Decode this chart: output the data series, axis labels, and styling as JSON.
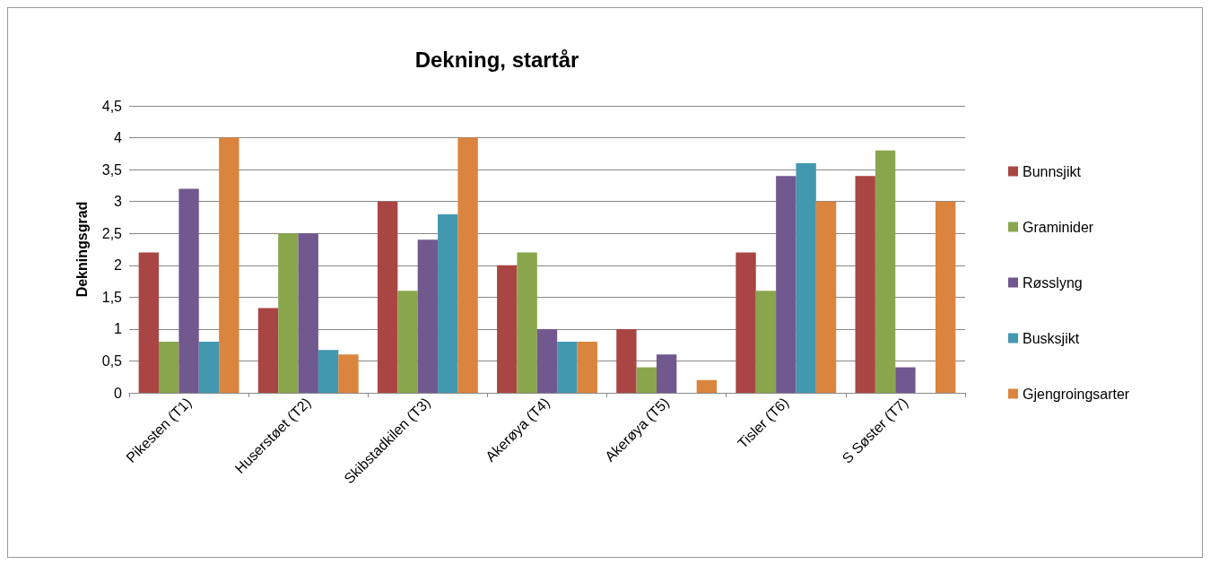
{
  "chart_data": {
    "type": "bar",
    "title": "Dekning, startår",
    "ylabel": "Dekningsgrad",
    "categories": [
      "Pikesten (T1)",
      "Huserstøet (T2)",
      "Skibstadkilen (T3)",
      "Akerøya (T4)",
      "Akerøya (T5)",
      "Tisler (T6)",
      "S Søster (T7)"
    ],
    "series": [
      {
        "name": "Bunnsjikt",
        "color": "#a94643",
        "values": [
          2.2,
          1.33,
          3,
          2,
          1,
          2.2,
          3.4
        ]
      },
      {
        "name": "Graminider",
        "color": "#8aa64c",
        "values": [
          0.8,
          2.5,
          1.6,
          2.2,
          0.4,
          1.6,
          3.8
        ]
      },
      {
        "name": "Røsslyng",
        "color": "#71588f",
        "values": [
          3.2,
          2.5,
          2.4,
          1,
          0.6,
          3.4,
          0.4
        ]
      },
      {
        "name": "Busksjikt",
        "color": "#4298af",
        "values": [
          0.8,
          0.67,
          2.8,
          0.8,
          null,
          3.6,
          null
        ]
      },
      {
        "name": "Gjengroingsarter",
        "color": "#db843d",
        "values": [
          4,
          0.6,
          4,
          0.8,
          0.2,
          3,
          3
        ]
      }
    ],
    "ylim": [
      0,
      4.5
    ],
    "yticks": [
      0,
      {
        "value": 0.5,
        "label": "0,5"
      },
      1,
      {
        "value": 1.5,
        "label": "1,5"
      },
      2,
      {
        "value": 2.5,
        "label": "2,5"
      },
      3,
      {
        "value": 3.5,
        "label": "3,5"
      },
      4,
      {
        "value": 4.5,
        "label": "4,5"
      }
    ],
    "grid": "y",
    "legend": "right"
  }
}
